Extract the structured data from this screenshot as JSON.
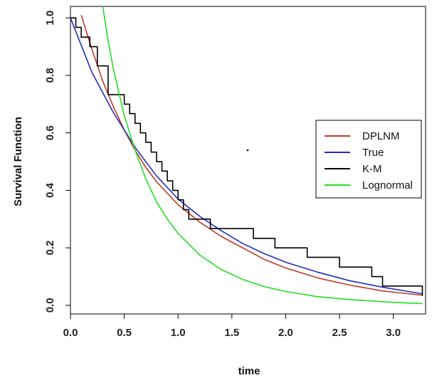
{
  "chart_data": {
    "type": "line",
    "xlabel": "time",
    "ylabel": "Survival Function",
    "xlim": [
      0,
      3.3
    ],
    "ylim": [
      -0.03,
      1.04
    ],
    "x_ticks": [
      "0.0",
      "0.5",
      "1.0",
      "1.5",
      "2.0",
      "2.5",
      "3.0"
    ],
    "y_ticks": [
      "0.0",
      "0.2",
      "0.4",
      "0.6",
      "0.8",
      "1.0"
    ],
    "legend_position": "right",
    "series": [
      {
        "name": "DPLNM",
        "color": "#c0392b",
        "x": [
          0.1,
          0.2,
          0.3,
          0.4,
          0.5,
          0.6,
          0.7,
          0.8,
          0.9,
          1.0,
          1.2,
          1.4,
          1.6,
          1.8,
          2.0,
          2.3,
          2.6,
          2.9,
          3.27
        ],
        "y": [
          1.01,
          0.89,
          0.78,
          0.69,
          0.61,
          0.54,
          0.48,
          0.43,
          0.39,
          0.35,
          0.29,
          0.24,
          0.2,
          0.16,
          0.13,
          0.095,
          0.07,
          0.05,
          0.035
        ]
      },
      {
        "name": "True",
        "color": "#1f2fb8",
        "x": [
          0.0,
          0.2,
          0.4,
          0.6,
          0.8,
          1.0,
          1.2,
          1.4,
          1.6,
          1.8,
          2.0,
          2.3,
          2.6,
          2.9,
          3.27
        ],
        "y": [
          1.0,
          0.81,
          0.67,
          0.55,
          0.45,
          0.37,
          0.31,
          0.26,
          0.215,
          0.18,
          0.15,
          0.115,
          0.085,
          0.063,
          0.04
        ]
      },
      {
        "name": "K-M",
        "color": "#000000",
        "step": true,
        "x": [
          0.0,
          0.05,
          0.1,
          0.18,
          0.25,
          0.35,
          0.5,
          0.55,
          0.6,
          0.65,
          0.7,
          0.75,
          0.8,
          0.85,
          0.9,
          0.95,
          1.0,
          1.05,
          1.1,
          1.2,
          1.3,
          1.5,
          1.7,
          1.9,
          2.2,
          2.5,
          2.8,
          2.9,
          3.27
        ],
        "y": [
          1.0,
          0.967,
          0.933,
          0.9,
          0.833,
          0.733,
          0.7,
          0.667,
          0.633,
          0.6,
          0.567,
          0.533,
          0.5,
          0.467,
          0.433,
          0.4,
          0.367,
          0.333,
          0.3,
          0.3,
          0.267,
          0.267,
          0.233,
          0.2,
          0.167,
          0.133,
          0.1,
          0.067,
          0.033
        ]
      },
      {
        "name": "Lognormal",
        "color": "#22dd22",
        "x": [
          0.3,
          0.35,
          0.4,
          0.5,
          0.6,
          0.7,
          0.8,
          0.9,
          1.0,
          1.2,
          1.4,
          1.6,
          1.8,
          2.0,
          2.3,
          2.6,
          3.0,
          3.27
        ],
        "y": [
          1.04,
          0.92,
          0.82,
          0.66,
          0.54,
          0.44,
          0.36,
          0.3,
          0.25,
          0.175,
          0.125,
          0.09,
          0.065,
          0.048,
          0.03,
          0.02,
          0.01,
          0.006
        ]
      }
    ]
  }
}
